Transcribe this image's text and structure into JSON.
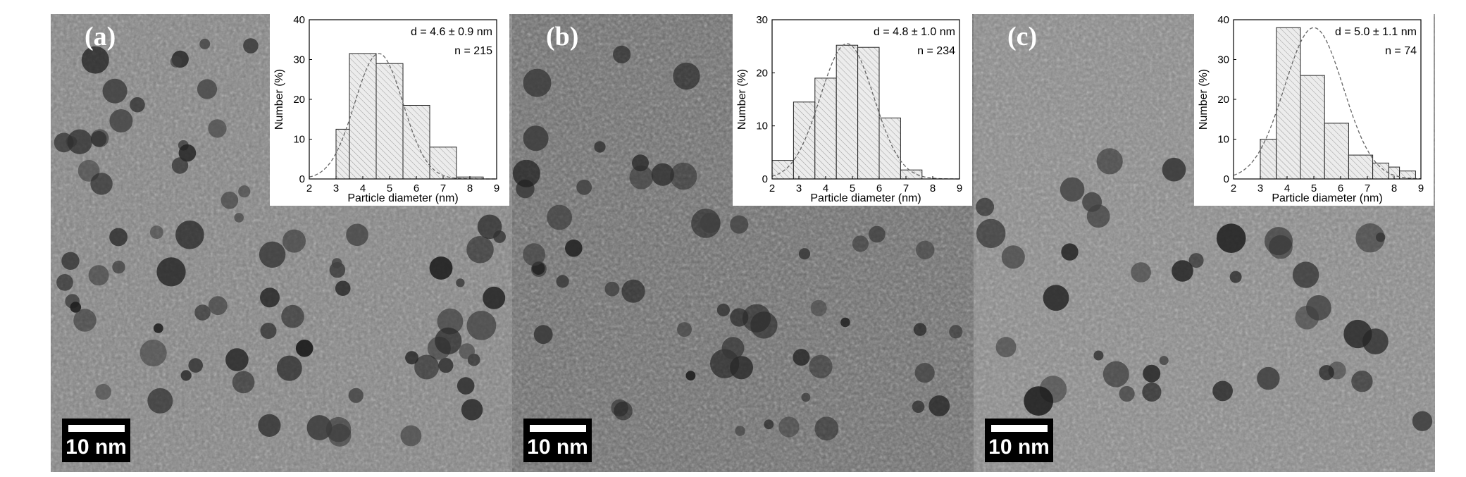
{
  "panels": [
    {
      "label": "(a)",
      "scale_bar": "10 nm"
    },
    {
      "label": "(b)",
      "scale_bar": "10 nm"
    },
    {
      "label": "(c)",
      "scale_bar": "10 nm"
    }
  ],
  "chart_data": [
    {
      "type": "bar",
      "xlabel": "Particle diameter (nm)",
      "ylabel": "Number (%)",
      "xlim": [
        2,
        9
      ],
      "ylim": [
        0,
        40
      ],
      "xticks": [
        2,
        3,
        4,
        5,
        6,
        7,
        8,
        9
      ],
      "yticks": [
        0,
        10,
        20,
        30,
        40
      ],
      "bins": [
        [
          3.0,
          3.5
        ],
        [
          3.5,
          4.5
        ],
        [
          4.5,
          5.5
        ],
        [
          5.5,
          6.5
        ],
        [
          6.5,
          7.5
        ],
        [
          7.5,
          8.5
        ]
      ],
      "values": [
        12.5,
        31.5,
        29,
        18.5,
        8,
        0.5
      ],
      "fit": {
        "type": "gaussian",
        "mean": 4.6,
        "sd": 0.9,
        "peak": 31.5
      },
      "annotations": [
        "d = 4.6 ± 0.9 nm",
        "n = 215"
      ]
    },
    {
      "type": "bar",
      "xlabel": "Particle diameter (nm)",
      "ylabel": "Number (%)",
      "xlim": [
        2,
        9
      ],
      "ylim": [
        0,
        30
      ],
      "xticks": [
        2,
        3,
        4,
        5,
        6,
        7,
        8,
        9
      ],
      "yticks": [
        0,
        10,
        20,
        30
      ],
      "bins": [
        [
          2.0,
          2.8
        ],
        [
          2.8,
          3.6
        ],
        [
          3.6,
          4.4
        ],
        [
          4.4,
          5.2
        ],
        [
          5.2,
          6.0
        ],
        [
          6.0,
          6.8
        ],
        [
          6.8,
          7.6
        ]
      ],
      "values": [
        3.5,
        14.5,
        19,
        25.2,
        24.8,
        11.5,
        1.7
      ],
      "fit": {
        "type": "gaussian",
        "mean": 4.8,
        "sd": 1.0,
        "peak": 25.5
      },
      "annotations": [
        "d = 4.8 ± 1.0 nm",
        "n = 234"
      ]
    },
    {
      "type": "bar",
      "xlabel": "Particle diameter (nm)",
      "ylabel": "Number (%)",
      "xlim": [
        2,
        9
      ],
      "ylim": [
        0,
        40
      ],
      "xticks": [
        2,
        3,
        4,
        5,
        6,
        7,
        8,
        9
      ],
      "yticks": [
        0,
        10,
        20,
        30,
        40
      ],
      "bins": [
        [
          3.0,
          3.6
        ],
        [
          3.6,
          4.5
        ],
        [
          4.5,
          5.4
        ],
        [
          5.4,
          6.3
        ],
        [
          6.3,
          7.2
        ],
        [
          7.2,
          7.8
        ],
        [
          7.8,
          8.2
        ],
        [
          8.2,
          8.8
        ]
      ],
      "values": [
        10,
        38,
        26,
        14,
        6,
        4,
        3,
        2
      ],
      "fit": {
        "type": "gaussian",
        "mean": 5.0,
        "sd": 1.1,
        "peak": 38
      },
      "annotations": [
        "d = 5.0 ± 1.1 nm",
        "n = 74"
      ]
    }
  ]
}
